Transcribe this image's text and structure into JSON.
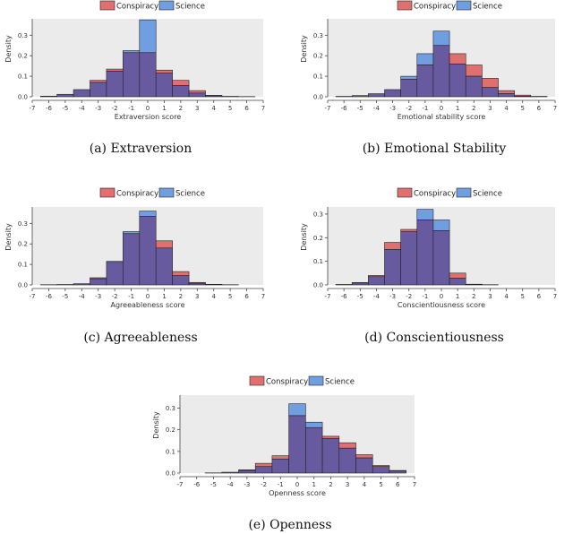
{
  "colors": {
    "conspiracy": "#e07070",
    "science": "#6f9fe0",
    "overlap": "#685a9e",
    "panel_bg": "#ebebeb"
  },
  "chart_data": [
    {
      "type": "bar",
      "title": "Extraversion",
      "caption": "(a) Extraversion",
      "xlabel": "Extraversion score",
      "ylabel": "Density",
      "legend": [
        "Conspiracy",
        "Science"
      ],
      "categories": [
        "-6",
        "-5",
        "-4",
        "-3",
        "-2",
        "-1",
        "0",
        "1",
        "2",
        "3",
        "4",
        "5",
        "6"
      ],
      "xticks": [
        "-7",
        "-6",
        "-5",
        "-4",
        "-3",
        "-2",
        "-1",
        "0",
        "1",
        "2",
        "3",
        "4",
        "5",
        "6",
        "7"
      ],
      "yticks": [
        "0.0",
        "0.1",
        "0.2",
        "0.3"
      ],
      "ylim": [
        0,
        0.38
      ],
      "series": [
        {
          "name": "Conspiracy",
          "values": [
            0.003,
            0.012,
            0.035,
            0.08,
            0.135,
            0.215,
            0.215,
            0.13,
            0.08,
            0.03,
            0.007,
            0.002,
            0.001
          ]
        },
        {
          "name": "Science",
          "values": [
            0.003,
            0.012,
            0.035,
            0.07,
            0.125,
            0.225,
            0.375,
            0.115,
            0.055,
            0.018,
            0.005,
            0.001,
            0.0
          ]
        }
      ]
    },
    {
      "type": "bar",
      "title": "Emotional Stability",
      "caption": "(b) Emotional Stability",
      "xlabel": "Emotional stability score",
      "ylabel": "Density",
      "legend": [
        "Conspiracy",
        "Science"
      ],
      "categories": [
        "-6",
        "-5",
        "-4",
        "-3",
        "-2",
        "-1",
        "0",
        "1",
        "2",
        "3",
        "4",
        "5",
        "6"
      ],
      "xticks": [
        "-7",
        "-6",
        "-5",
        "-4",
        "-3",
        "-2",
        "-1",
        "0",
        "1",
        "2",
        "3",
        "4",
        "5",
        "6",
        "7"
      ],
      "yticks": [
        "0.0",
        "0.1",
        "0.2",
        "0.3"
      ],
      "ylim": [
        0,
        0.38
      ],
      "series": [
        {
          "name": "Conspiracy",
          "values": [
            0.002,
            0.006,
            0.015,
            0.035,
            0.085,
            0.155,
            0.25,
            0.21,
            0.155,
            0.09,
            0.03,
            0.008,
            0.002
          ]
        },
        {
          "name": "Science",
          "values": [
            0.002,
            0.006,
            0.015,
            0.035,
            0.1,
            0.21,
            0.32,
            0.16,
            0.1,
            0.045,
            0.015,
            0.003,
            0.001
          ]
        }
      ]
    },
    {
      "type": "bar",
      "title": "Agreeableness",
      "caption": "(c) Agreeableness",
      "xlabel": "Agreeableness score",
      "ylabel": "Density",
      "legend": [
        "Conspiracy",
        "Science"
      ],
      "categories": [
        "-6",
        "-5",
        "-4",
        "-3",
        "-2",
        "-1",
        "0",
        "1",
        "2",
        "3",
        "4",
        "5",
        "6"
      ],
      "xticks": [
        "-7",
        "-6",
        "-5",
        "-4",
        "-3",
        "-2",
        "-1",
        "0",
        "1",
        "2",
        "3",
        "4",
        "5",
        "6",
        "7"
      ],
      "yticks": [
        "0.0",
        "0.1",
        "0.2",
        "0.3"
      ],
      "ylim": [
        0,
        0.38
      ],
      "series": [
        {
          "name": "Conspiracy",
          "values": [
            0.001,
            0.002,
            0.006,
            0.035,
            0.11,
            0.25,
            0.335,
            0.215,
            0.065,
            0.012,
            0.003,
            0.001,
            0.0
          ]
        },
        {
          "name": "Science",
          "values": [
            0.001,
            0.002,
            0.006,
            0.03,
            0.115,
            0.26,
            0.36,
            0.18,
            0.045,
            0.008,
            0.002,
            0.001,
            0.0
          ]
        }
      ]
    },
    {
      "type": "bar",
      "title": "Conscientiousness",
      "caption": "(d) Conscientiousness",
      "xlabel": "Conscientiousness score",
      "ylabel": "Density",
      "legend": [
        "Conspiracy",
        "Science"
      ],
      "categories": [
        "-6",
        "-5",
        "-4",
        "-3",
        "-2",
        "-1",
        "0",
        "1",
        "2",
        "3",
        "4",
        "5",
        "6"
      ],
      "xticks": [
        "-7",
        "-6",
        "-5",
        "-4",
        "-3",
        "-2",
        "-1",
        "0",
        "1",
        "2",
        "3",
        "4",
        "5",
        "6",
        "7"
      ],
      "yticks": [
        "0.0",
        "0.1",
        "0.2",
        "0.3"
      ],
      "ylim": [
        0,
        0.33
      ],
      "series": [
        {
          "name": "Conspiracy",
          "values": [
            0.002,
            0.01,
            0.04,
            0.18,
            0.235,
            0.275,
            0.23,
            0.05,
            0.003,
            0.001,
            0.0,
            0.0,
            0.0
          ]
        },
        {
          "name": "Science",
          "values": [
            0.002,
            0.008,
            0.035,
            0.15,
            0.225,
            0.32,
            0.275,
            0.028,
            0.002,
            0.001,
            0.0,
            0.0,
            0.0
          ]
        }
      ]
    },
    {
      "type": "bar",
      "title": "Openness",
      "caption": "(e) Openness",
      "xlabel": "Openness score",
      "ylabel": "Density",
      "legend": [
        "Conspiracy",
        "Science"
      ],
      "categories": [
        "-6",
        "-5",
        "-4",
        "-3",
        "-2",
        "-1",
        "0",
        "1",
        "2",
        "3",
        "4",
        "5",
        "6"
      ],
      "xticks": [
        "-7",
        "-6",
        "-5",
        "-4",
        "-3",
        "-2",
        "-1",
        "0",
        "1",
        "2",
        "3",
        "4",
        "5",
        "6",
        "7"
      ],
      "yticks": [
        "0.0",
        "0.1",
        "0.2",
        "0.3"
      ],
      "ylim": [
        0,
        0.36
      ],
      "series": [
        {
          "name": "Conspiracy",
          "values": [
            0.0,
            0.001,
            0.004,
            0.015,
            0.045,
            0.08,
            0.265,
            0.21,
            0.17,
            0.14,
            0.085,
            0.035,
            0.012
          ]
        },
        {
          "name": "Science",
          "values": [
            0.0,
            0.001,
            0.004,
            0.012,
            0.03,
            0.065,
            0.32,
            0.235,
            0.16,
            0.115,
            0.07,
            0.03,
            0.01
          ]
        }
      ]
    }
  ]
}
